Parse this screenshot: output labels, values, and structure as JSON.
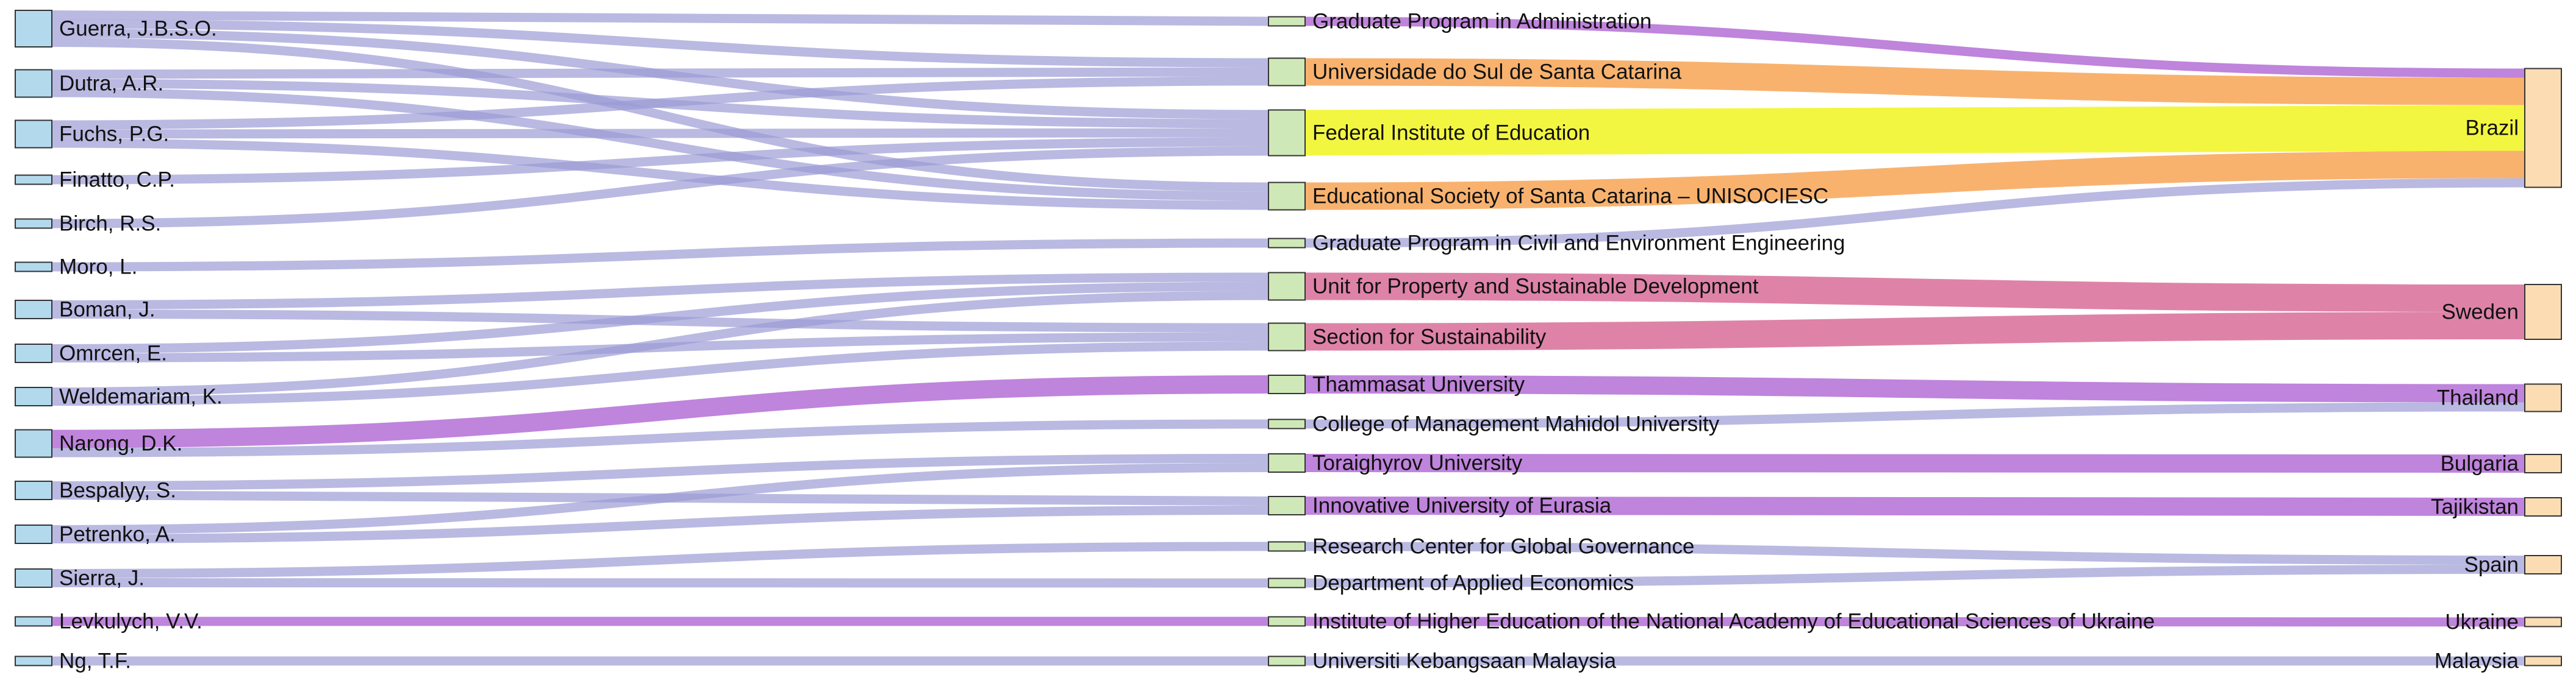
{
  "colors": {
    "author_node": "#b3d9ec",
    "institution_node": "#cfe8b7",
    "country_node": "#fbdcb3",
    "node_stroke": "#333333",
    "link_default": "#9b9bd6",
    "link_purple": "#b46fd6",
    "link_orange": "#f7a555",
    "link_yellow": "#f1f51f",
    "link_pink": "#d86d98"
  },
  "authors": [
    "Guerra, J.B.S.O.",
    "Dutra, A.R.",
    "Fuchs, P.G.",
    "Finatto, C.P.",
    "Birch, R.S.",
    "Moro, L.",
    "Boman, J.",
    "Omrcen, E.",
    "Weldemariam, K.",
    "Narong, D.K.",
    "Bespalyy, S.",
    "Petrenko, A.",
    "Sierra, J.",
    "Levkulych, V.V.",
    "Ng, T.F."
  ],
  "institutions": [
    "Graduate Program in Administration",
    "Universidade do Sul de Santa Catarina",
    "Federal Institute of Education",
    "Educational Society of Santa Catarina – UNISOCIESC",
    "Graduate Program in Civil and Environment Engineering",
    "Unit for Property and Sustainable Development",
    "Section for Sustainability",
    "Thammasat University",
    "College of Management Mahidol University",
    "Toraighyrov University",
    "Innovative University of Eurasia",
    "Research Center for Global Governance",
    "Department of Applied Economics",
    "Institute of Higher Education of the National Academy of Educational Sciences of Ukraine",
    "Universiti Kebangsaan Malaysia"
  ],
  "countries": [
    "Brazil",
    "Sweden",
    "Thailand",
    "Bulgaria",
    "Tajikistan",
    "Spain",
    "Ukraine",
    "Malaysia"
  ],
  "author_links": [
    {
      "author": 0,
      "institution": 0,
      "value": 1
    },
    {
      "author": 0,
      "institution": 1,
      "value": 1
    },
    {
      "author": 0,
      "institution": 2,
      "value": 1
    },
    {
      "author": 0,
      "institution": 3,
      "value": 1
    },
    {
      "author": 1,
      "institution": 1,
      "value": 1
    },
    {
      "author": 1,
      "institution": 2,
      "value": 1
    },
    {
      "author": 1,
      "institution": 3,
      "value": 1
    },
    {
      "author": 2,
      "institution": 1,
      "value": 1
    },
    {
      "author": 2,
      "institution": 2,
      "value": 1
    },
    {
      "author": 2,
      "institution": 3,
      "value": 1
    },
    {
      "author": 3,
      "institution": 2,
      "value": 1
    },
    {
      "author": 4,
      "institution": 2,
      "value": 1
    },
    {
      "author": 5,
      "institution": 4,
      "value": 1
    },
    {
      "author": 6,
      "institution": 5,
      "value": 1
    },
    {
      "author": 6,
      "institution": 6,
      "value": 1
    },
    {
      "author": 7,
      "institution": 5,
      "value": 1
    },
    {
      "author": 7,
      "institution": 6,
      "value": 1
    },
    {
      "author": 8,
      "institution": 5,
      "value": 1
    },
    {
      "author": 8,
      "institution": 6,
      "value": 1
    },
    {
      "author": 9,
      "institution": 7,
      "value": 2,
      "color": "link_purple"
    },
    {
      "author": 9,
      "institution": 8,
      "value": 1
    },
    {
      "author": 10,
      "institution": 9,
      "value": 1
    },
    {
      "author": 10,
      "institution": 10,
      "value": 1
    },
    {
      "author": 11,
      "institution": 9,
      "value": 1
    },
    {
      "author": 11,
      "institution": 10,
      "value": 1
    },
    {
      "author": 12,
      "institution": 11,
      "value": 1
    },
    {
      "author": 12,
      "institution": 12,
      "value": 1
    },
    {
      "author": 13,
      "institution": 13,
      "value": 1,
      "color": "link_purple"
    },
    {
      "author": 14,
      "institution": 14,
      "value": 1
    }
  ],
  "country_links": [
    {
      "institution": 0,
      "country": 0,
      "value": 1,
      "color": "link_purple"
    },
    {
      "institution": 1,
      "country": 0,
      "value": 3,
      "color": "link_orange"
    },
    {
      "institution": 2,
      "country": 0,
      "value": 5,
      "color": "link_yellow"
    },
    {
      "institution": 3,
      "country": 0,
      "value": 3,
      "color": "link_orange"
    },
    {
      "institution": 4,
      "country": 0,
      "value": 1
    },
    {
      "institution": 5,
      "country": 1,
      "value": 3,
      "color": "link_pink"
    },
    {
      "institution": 6,
      "country": 1,
      "value": 3,
      "color": "link_pink"
    },
    {
      "institution": 7,
      "country": 2,
      "value": 2,
      "color": "link_purple"
    },
    {
      "institution": 8,
      "country": 2,
      "value": 1
    },
    {
      "institution": 9,
      "country": 3,
      "value": 2,
      "color": "link_purple"
    },
    {
      "institution": 10,
      "country": 4,
      "value": 2,
      "color": "link_purple"
    },
    {
      "institution": 11,
      "country": 5,
      "value": 1
    },
    {
      "institution": 12,
      "country": 5,
      "value": 1
    },
    {
      "institution": 13,
      "country": 6,
      "value": 1,
      "color": "link_purple"
    },
    {
      "institution": 14,
      "country": 7,
      "value": 1
    }
  ]
}
